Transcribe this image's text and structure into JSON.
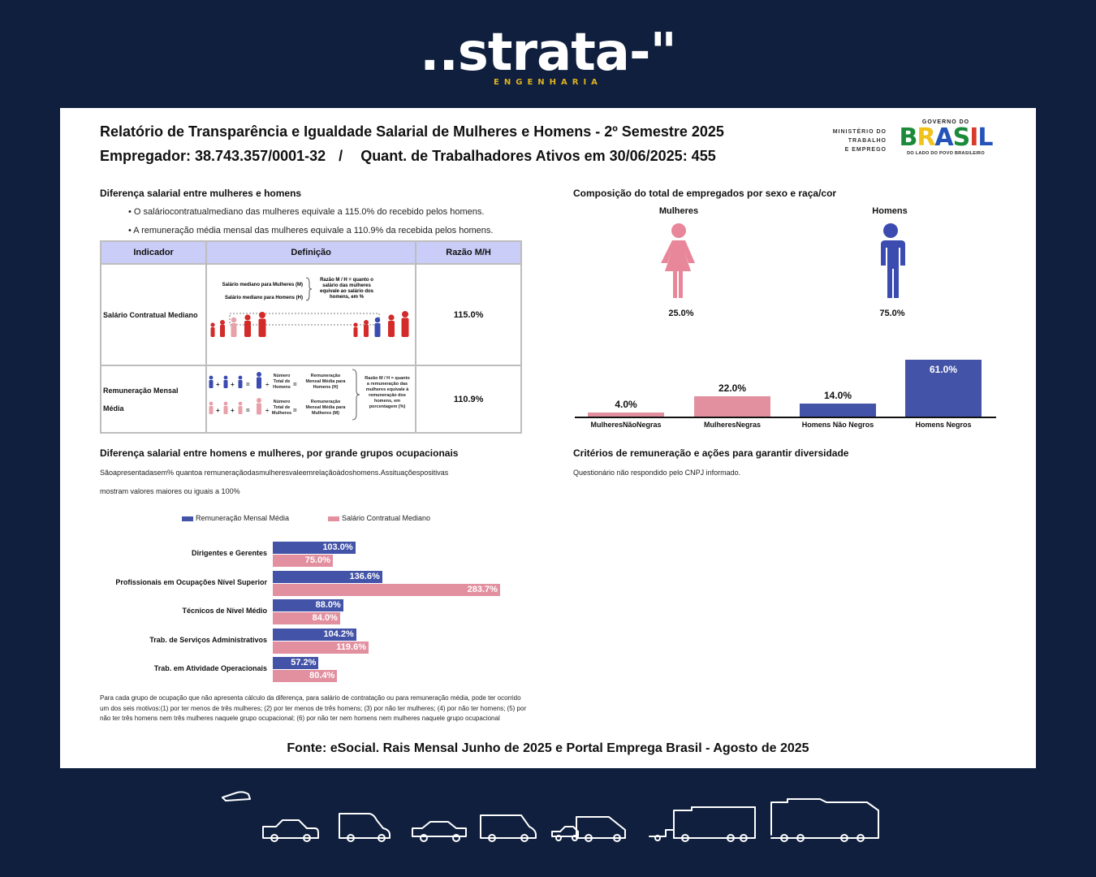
{
  "logo": {
    "word": "..strata-\"",
    "subtitle": "ENGENHARIA"
  },
  "report": {
    "title": "Relatório de Transparência e Igualdade Salarial de Mulheres e Homens - 2º Semestre 2025",
    "employer": "Empregador: 38.743.357/0001-32",
    "separator": "/",
    "workers": "Quant. de Trabalhadores Ativos em 30/06/2025: 455"
  },
  "gov": {
    "ministry": [
      "MINISTÉRIO DO",
      "TRABALHO",
      "E EMPREGO"
    ],
    "top": "GOVERNO DO",
    "word": "BRASIL",
    "bottom": "DO LADO DO POVO BRASILEIRO"
  },
  "salary_diff": {
    "title": "Diferença salarial entre mulheres e homens",
    "bullet1": "• O saláriocontratualmediano das mulheres equivale a 115.0% do recebido pelos homens.",
    "bullet2": "• A remuneração média mensal das mulheres equivale a 110.9% da recebida pelos homens.",
    "table": {
      "headers": [
        "Indicador",
        "Definição",
        "Razão M/H"
      ],
      "row1": {
        "indicator": "Salário Contratual Mediano",
        "def_line1": "Salário mediano para Mulheres (M)",
        "def_line2": "Salário mediano para Homens (H)",
        "def_note": [
          "Razão M / H = quanto o",
          "salário das mulheres",
          "equivale ao salário dos",
          "homens, em %"
        ],
        "ratio": "115.0%"
      },
      "row2": {
        "indicator_line1": "Remuneração Mensal",
        "indicator_line2": "Média",
        "def_count_h": [
          "Número",
          "Total de",
          "Homens"
        ],
        "def_count_m": [
          "Número",
          "Total de",
          "Mulheres"
        ],
        "def_avg_h": [
          "Remuneração",
          "Mensal Média para",
          "Homens (H)"
        ],
        "def_avg_m": [
          "Remuneração",
          "Mensal Média para",
          "Mulheres (M)"
        ],
        "def_note": [
          "Razão M / H = quanto",
          "a remuneração das",
          "mulheres equivale à",
          "remuneração dos",
          "homens, em",
          "porcentagem (%)"
        ],
        "ratio": "110.9%"
      }
    }
  },
  "occupational": {
    "title": "Diferença salarial entre homens e mulheres, por grande grupos ocupacionais",
    "desc1": "Sãoapresentadasem% quantoa remuneraçãodasmulheresvaleemrelaçãoàdoshomens.Assituaçõespositivas",
    "desc2": "mostram valores maiores ou iguais a 100%",
    "note": "Para cada grupo de ocupação que não apresenta cálculo da diferença, para salário de contratação ou para remuneração média, pode ter ocorrido um dos seis motivos:(1) por ter menos de três mulheres; (2) por ter menos de três homens; (3) por não ter mulheres; (4) por não ter homens; (5) por não ter três homens nem três mulheres naquele grupo ocupacional; (6) por não ter nem homens nem mulheres naquele grupo ocupacional"
  },
  "composition": {
    "title": "Composição do total de empregados por sexo e raça/cor",
    "women_label": "Mulheres",
    "men_label": "Homens",
    "women_pct": "25.0%",
    "men_pct": "75.0%"
  },
  "criteria": {
    "title": "Critérios de remuneração e ações para garantir diversidade",
    "text": "Questionário não respondido pelo CNPJ informado."
  },
  "source": "Fonte: eSocial. Rais Mensal Junho de 2025 e Portal Emprega Brasil - Agosto de 2025",
  "colors": {
    "blue": "#4353a8",
    "pink": "#e2909f",
    "navy": "#0f1f3d",
    "header": "#c9cdf7"
  },
  "chart_data": [
    {
      "type": "bar",
      "orientation": "horizontal",
      "title": "Diferença salarial entre homens e mulheres, por grande grupos ocupacionais",
      "categories": [
        "Dirigentes e Gerentes",
        "Profissionais em Ocupações Nível Superior",
        "Técnicos de Nível Médio",
        "Trab. de Serviços Administrativos",
        "Trab. em Atividade Operacionais"
      ],
      "series": [
        {
          "name": "Remuneração Mensal Média",
          "values": [
            103.0,
            136.6,
            88.0,
            104.2,
            57.2
          ],
          "labels": [
            "103.0%",
            "136.6%",
            "88.0%",
            "104.2%",
            "57.2%"
          ]
        },
        {
          "name": "Salário Contratual Mediano",
          "values": [
            75.0,
            283.7,
            84.0,
            119.6,
            80.4
          ],
          "labels": [
            "75.0%",
            "283.7%",
            "84.0%",
            "119.6%",
            "80.4%"
          ]
        }
      ],
      "xlim": [
        0,
        300
      ],
      "legend": "top"
    },
    {
      "type": "bar",
      "title": "Composição do total de empregados por sexo e raça/cor",
      "categories": [
        "MulheresNãoNegras",
        "MulheresNegras",
        "Homens Não Negros",
        "Homens Negros"
      ],
      "values": [
        4.0,
        22.0,
        14.0,
        61.0
      ],
      "labels": [
        "4.0%",
        "22.0%",
        "14.0%",
        "61.0%"
      ],
      "colors": [
        "pink",
        "pink",
        "blue",
        "blue"
      ],
      "ylim": [
        0,
        61
      ]
    }
  ]
}
